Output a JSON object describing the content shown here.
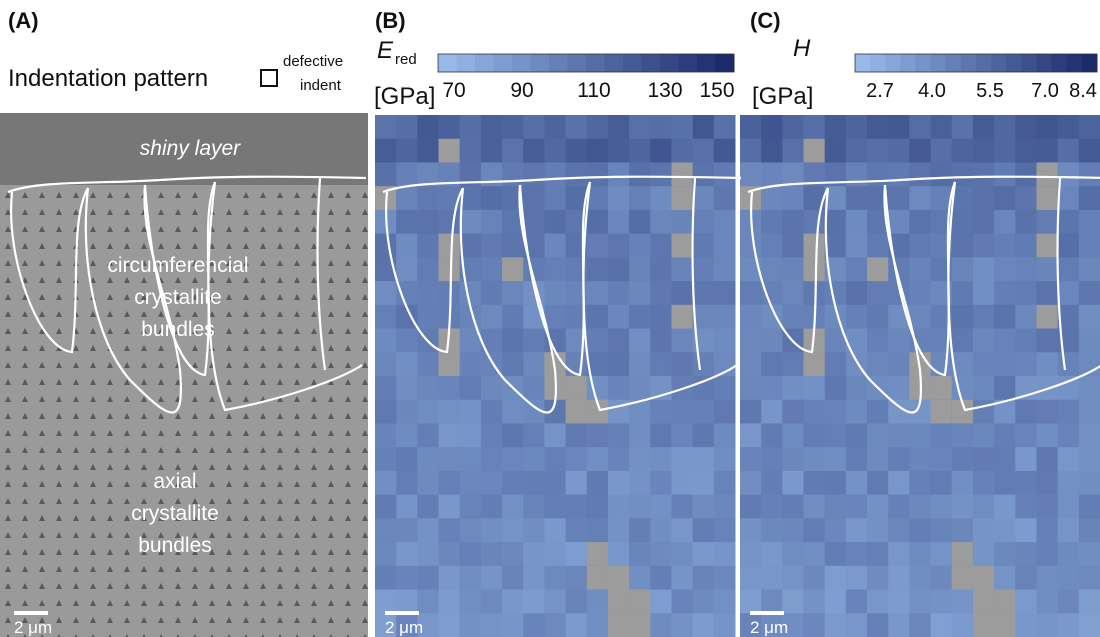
{
  "panels": [
    {
      "label": "(A)",
      "title": "Indentation pattern",
      "legend": [
        "defective",
        "indent"
      ],
      "annotations": [
        "shiny layer",
        "circumferencial",
        "crystallite",
        "bundles",
        "axial",
        "crystallite",
        "bundles"
      ],
      "scale_bar": "2 μm"
    },
    {
      "label": "(B)",
      "symbol": "E",
      "subscript": "red",
      "unit": "[GPa]",
      "colorbar_ticks": [
        "70",
        "90",
        "110",
        "130",
        "150"
      ],
      "scale_bar": "2 μm"
    },
    {
      "label": "(C)",
      "symbol": "H",
      "unit": "[GPa]",
      "colorbar_ticks": [
        "2.7",
        "4.0",
        "5.5",
        "7.0",
        "8.4"
      ],
      "scale_bar": "2 μm"
    }
  ]
}
